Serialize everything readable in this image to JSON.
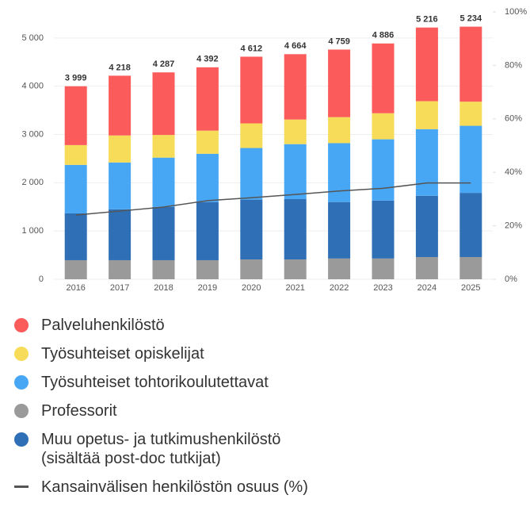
{
  "chart_data": {
    "type": "bar",
    "stacked": true,
    "categories": [
      "2016",
      "2017",
      "2018",
      "2019",
      "2020",
      "2021",
      "2022",
      "2023",
      "2024",
      "2025"
    ],
    "series": [
      {
        "name": "Palveluhenkilöstö",
        "color": "#fc5b5b",
        "values": [
          1219,
          1238,
          1297,
          1312,
          1382,
          1354,
          1399,
          1446,
          1526,
          1554
        ]
      },
      {
        "name": "Työsuhteiset opiskelijat",
        "color": "#f7dc5a",
        "values": [
          410,
          560,
          470,
          480,
          510,
          510,
          540,
          540,
          580,
          500
        ]
      },
      {
        "name": "Työsuhteiset tohtorikoulutettavat",
        "color": "#48a7f5",
        "values": [
          1005,
          970,
          1020,
          1000,
          1070,
          1140,
          1220,
          1270,
          1380,
          1390
        ]
      },
      {
        "name": "Professorit",
        "color": "#9a9a9a",
        "values": [
          395,
          395,
          395,
          395,
          410,
          410,
          430,
          430,
          460,
          460
        ]
      },
      {
        "name": "Muu opetus- ja tutkimushenkilöstö\n(sisältää post-doc tutkijat)",
        "color": "#2f6fb6",
        "values": [
          970,
          1055,
          1105,
          1205,
          1240,
          1250,
          1170,
          1200,
          1270,
          1330
        ]
      },
      {
        "name": "Kansainvälisen henkilöstön osuus (%)",
        "color": "#555555",
        "type": "line",
        "axis": "y2",
        "values": [
          24,
          25.5,
          27,
          29.4,
          30.5,
          31.7,
          33,
          34,
          36,
          36
        ]
      }
    ],
    "totals": [
      3999,
      4218,
      4287,
      4392,
      4612,
      4664,
      4759,
      4886,
      5216,
      5234
    ],
    "total_labels": [
      "3 999",
      "4 218",
      "4 287",
      "4 392",
      "4 612",
      "4 664",
      "4 759",
      "4 886",
      "5 216",
      "5 234"
    ],
    "ylim": [
      0,
      5540
    ],
    "yticks": [
      0,
      {
        "value": 1000,
        "label": "1 000"
      },
      {
        "value": 2000,
        "label": "2 000"
      },
      {
        "value": 3000,
        "label": "3 000"
      },
      {
        "value": 4000,
        "label": "4 000"
      },
      {
        "value": 5000,
        "label": "5 000"
      }
    ],
    "y2lim": [
      0,
      100
    ],
    "y2ticks": [
      {
        "value": 0,
        "label": "0%"
      },
      {
        "value": 20,
        "label": "20%"
      },
      {
        "value": 40,
        "label": "40%"
      },
      {
        "value": 60,
        "label": "60%"
      },
      {
        "value": 80,
        "label": "80%"
      },
      {
        "value": 100,
        "label": "100%"
      }
    ],
    "grid": true
  }
}
